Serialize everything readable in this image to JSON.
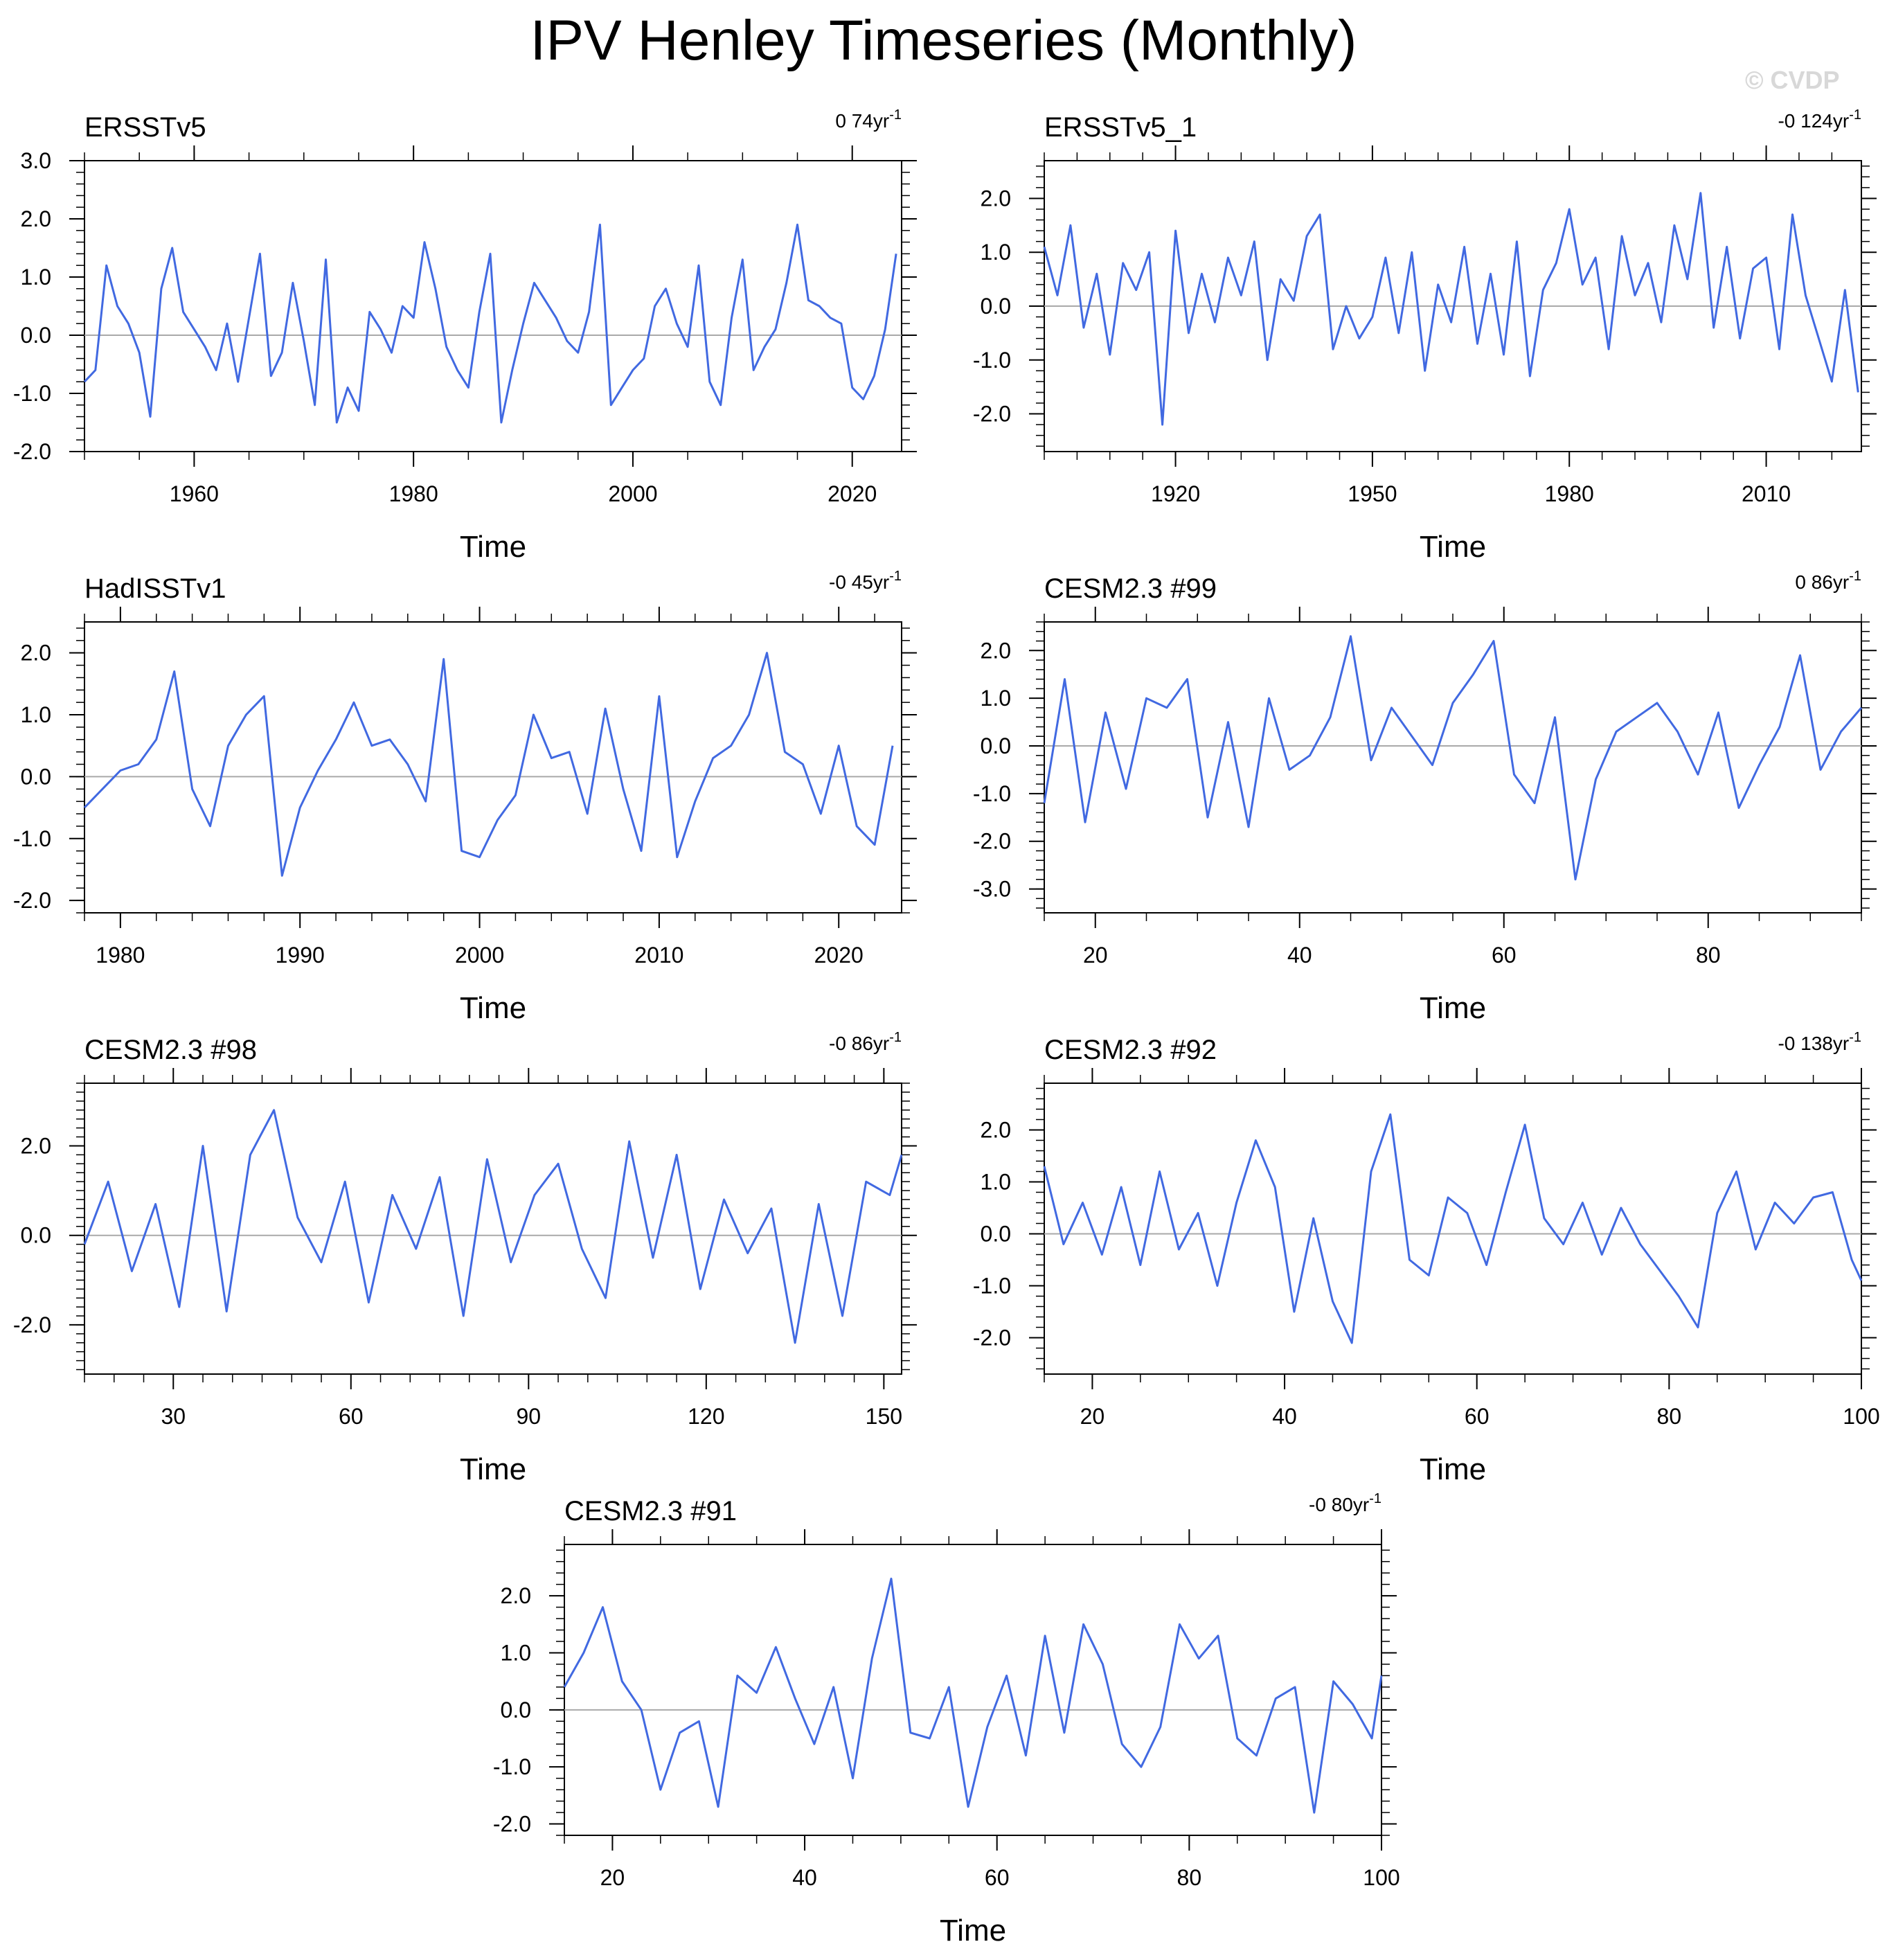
{
  "title": "IPV Henley Timeseries (Monthly)",
  "watermark": "© CVDP",
  "chart_data": [
    {
      "type": "line",
      "title": "ERSSTv5",
      "trend": "0 74yr",
      "trend_sup": "-1",
      "xlabel": "Time",
      "ylabel": "",
      "xlim": [
        1950,
        2024.5
      ],
      "ylim": [
        -2.0,
        3.0
      ],
      "yticks": [
        3.0,
        2.0,
        1.0,
        0.0,
        -1.0,
        -2.0
      ],
      "ytick_labels": [
        "3.0",
        "2.0",
        "1.0",
        "0.0",
        "-1.0",
        "-2.0"
      ],
      "xticks": [
        1960,
        1980,
        2000,
        2020
      ],
      "xtick_labels": [
        "1960",
        "1980",
        "2000",
        "2020"
      ],
      "series_color": "#4169e1",
      "series": [
        {
          "x": [
            1950,
            1951,
            1952,
            1953,
            1954,
            1955,
            1956,
            1957,
            1958,
            1959,
            1960,
            1961,
            1962,
            1963,
            1964,
            1965,
            1966,
            1967,
            1968,
            1969,
            1970,
            1971,
            1972,
            1973,
            1974,
            1975,
            1976,
            1977,
            1978,
            1979,
            1980,
            1981,
            1982,
            1983,
            1984,
            1985,
            1986,
            1987,
            1988,
            1989,
            1990,
            1991,
            1992,
            1993,
            1994,
            1995,
            1996,
            1997,
            1998,
            1999,
            2000,
            2001,
            2002,
            2003,
            2004,
            2005,
            2006,
            2007,
            2008,
            2009,
            2010,
            2011,
            2012,
            2013,
            2014,
            2015,
            2016,
            2017,
            2018,
            2019,
            2020,
            2021,
            2022,
            2023,
            2024
          ],
          "y": [
            -0.8,
            -0.6,
            1.2,
            0.5,
            0.2,
            -0.3,
            -1.4,
            0.8,
            1.5,
            0.4,
            0.1,
            -0.2,
            -0.6,
            0.2,
            -0.8,
            0.3,
            1.4,
            -0.7,
            -0.3,
            0.9,
            -0.1,
            -1.2,
            1.3,
            -1.5,
            -0.9,
            -1.3,
            0.4,
            0.1,
            -0.3,
            0.5,
            0.3,
            1.6,
            0.8,
            -0.2,
            -0.6,
            -0.9,
            0.4,
            1.4,
            -1.5,
            -0.6,
            0.2,
            0.9,
            0.6,
            0.3,
            -0.1,
            -0.3,
            0.4,
            1.9,
            -1.2,
            -0.9,
            -0.6,
            -0.4,
            0.5,
            0.8,
            0.2,
            -0.2,
            1.2,
            -0.8,
            -1.2,
            0.3,
            1.3,
            -0.6,
            -0.2,
            0.1,
            0.9,
            1.9,
            0.6,
            0.5,
            0.3,
            0.2,
            -0.9,
            -1.1,
            -0.7,
            0.1,
            1.4
          ]
        }
      ]
    },
    {
      "type": "line",
      "title": "ERSSTv5_1",
      "trend": "-0 124yr",
      "trend_sup": "-1",
      "xlabel": "Time",
      "ylabel": "",
      "xlim": [
        1900,
        2024.5
      ],
      "ylim": [
        -2.7,
        2.7
      ],
      "yticks": [
        2.0,
        1.0,
        0.0,
        -1.0,
        -2.0
      ],
      "ytick_labels": [
        "2.0",
        "1.0",
        "0.0",
        "-1.0",
        "-2.0"
      ],
      "xticks": [
        1920,
        1950,
        1980,
        2010
      ],
      "xtick_labels": [
        "1920",
        "1950",
        "1980",
        "2010"
      ],
      "series_color": "#4169e1",
      "series": [
        {
          "x": [
            1900,
            1902,
            1904,
            1906,
            1908,
            1910,
            1912,
            1914,
            1916,
            1918,
            1920,
            1922,
            1924,
            1926,
            1928,
            1930,
            1932,
            1934,
            1936,
            1938,
            1940,
            1942,
            1944,
            1946,
            1948,
            1950,
            1952,
            1954,
            1956,
            1958,
            1960,
            1962,
            1964,
            1966,
            1968,
            1970,
            1972,
            1974,
            1976,
            1978,
            1980,
            1982,
            1984,
            1986,
            1988,
            1990,
            1992,
            1994,
            1996,
            1998,
            2000,
            2002,
            2004,
            2006,
            2008,
            2010,
            2012,
            2014,
            2016,
            2018,
            2020,
            2022,
            2024
          ],
          "y": [
            1.1,
            0.2,
            1.5,
            -0.4,
            0.6,
            -0.9,
            0.8,
            0.3,
            1.0,
            -2.2,
            1.4,
            -0.5,
            0.6,
            -0.3,
            0.9,
            0.2,
            1.2,
            -1.0,
            0.5,
            0.1,
            1.3,
            1.7,
            -0.8,
            0.0,
            -0.6,
            -0.2,
            0.9,
            -0.5,
            1.0,
            -1.2,
            0.4,
            -0.3,
            1.1,
            -0.7,
            0.6,
            -0.9,
            1.2,
            -1.3,
            0.3,
            0.8,
            1.8,
            0.4,
            0.9,
            -0.8,
            1.3,
            0.2,
            0.8,
            -0.3,
            1.5,
            0.5,
            2.1,
            -0.4,
            1.1,
            -0.6,
            0.7,
            0.9,
            -0.8,
            1.7,
            0.2,
            -0.6,
            -1.4,
            0.3,
            -1.6
          ]
        }
      ]
    },
    {
      "type": "line",
      "title": "HadISSTv1",
      "trend": "-0 45yr",
      "trend_sup": "-1",
      "xlabel": "Time",
      "ylabel": "",
      "xlim": [
        1978,
        2023.5
      ],
      "ylim": [
        -2.2,
        2.5
      ],
      "yticks": [
        2.0,
        1.0,
        0.0,
        -1.0,
        -2.0
      ],
      "ytick_labels": [
        "2.0",
        "1.0",
        "0.0",
        "-1.0",
        "-2.0"
      ],
      "xticks": [
        1980,
        1990,
        2000,
        2010,
        2020
      ],
      "xtick_labels": [
        "1980",
        "1990",
        "2000",
        "2010",
        "2020"
      ],
      "series_color": "#4169e1",
      "series": [
        {
          "x": [
            1978,
            1979,
            1980,
            1981,
            1982,
            1983,
            1984,
            1985,
            1986,
            1987,
            1988,
            1989,
            1990,
            1991,
            1992,
            1993,
            1994,
            1995,
            1996,
            1997,
            1998,
            1999,
            2000,
            2001,
            2002,
            2003,
            2004,
            2005,
            2006,
            2007,
            2008,
            2009,
            2010,
            2011,
            2012,
            2013,
            2014,
            2015,
            2016,
            2017,
            2018,
            2019,
            2020,
            2021,
            2022,
            2023
          ],
          "y": [
            -0.5,
            -0.2,
            0.1,
            0.2,
            0.6,
            1.7,
            -0.2,
            -0.8,
            0.5,
            1.0,
            1.3,
            -1.6,
            -0.5,
            0.1,
            0.6,
            1.2,
            0.5,
            0.6,
            0.2,
            -0.4,
            1.9,
            -1.2,
            -1.3,
            -0.7,
            -0.3,
            1.0,
            0.3,
            0.4,
            -0.6,
            1.1,
            -0.2,
            -1.2,
            1.3,
            -1.3,
            -0.4,
            0.3,
            0.5,
            1.0,
            2.0,
            0.4,
            0.2,
            -0.6,
            0.5,
            -0.8,
            -1.1,
            0.5
          ]
        }
      ]
    },
    {
      "type": "line",
      "title": "CESM2.3 #99",
      "trend": "0 86yr",
      "trend_sup": "-1",
      "xlabel": "Time",
      "ylabel": "",
      "xlim": [
        15,
        95
      ],
      "ylim": [
        -3.5,
        2.6
      ],
      "yticks": [
        2.0,
        1.0,
        0.0,
        -1.0,
        -2.0,
        -3.0
      ],
      "ytick_labels": [
        "2.0",
        "1.0",
        "0.0",
        "-1.0",
        "-2.0",
        "-3.0"
      ],
      "xticks": [
        20,
        40,
        60,
        80
      ],
      "xtick_labels": [
        "20",
        "40",
        "60",
        "80"
      ],
      "series_color": "#4169e1",
      "series": [
        {
          "x": [
            15,
            17,
            19,
            21,
            23,
            25,
            27,
            29,
            31,
            33,
            35,
            37,
            39,
            41,
            43,
            45,
            47,
            49,
            51,
            53,
            55,
            57,
            59,
            61,
            63,
            65,
            67,
            69,
            71,
            73,
            75,
            77,
            79,
            81,
            83,
            85,
            87,
            89,
            91,
            93,
            95
          ],
          "y": [
            -1.2,
            1.4,
            -1.6,
            0.7,
            -0.9,
            1.0,
            0.8,
            1.4,
            -1.5,
            0.5,
            -1.7,
            1.0,
            -0.5,
            -0.2,
            0.6,
            2.3,
            -0.3,
            0.8,
            0.2,
            -0.4,
            0.9,
            1.5,
            2.2,
            -0.6,
            -1.2,
            0.6,
            -2.8,
            -0.7,
            0.3,
            0.6,
            0.9,
            0.3,
            -0.6,
            0.7,
            -1.3,
            -0.4,
            0.4,
            1.9,
            -0.5,
            0.3,
            0.8
          ]
        }
      ]
    },
    {
      "type": "line",
      "title": "CESM2.3 #98",
      "trend": "-0 86yr",
      "trend_sup": "-1",
      "xlabel": "Time",
      "ylabel": "",
      "xlim": [
        15,
        153
      ],
      "ylim": [
        -3.1,
        3.4
      ],
      "yticks": [
        2.0,
        0.0,
        -2.0
      ],
      "ytick_labels": [
        "2.0",
        "0.0",
        "-2.0"
      ],
      "xticks": [
        30,
        60,
        90,
        120,
        150
      ],
      "xtick_labels": [
        "30",
        "60",
        "90",
        "120",
        "150"
      ],
      "series_color": "#4169e1",
      "series": [
        {
          "x": [
            15,
            19,
            23,
            27,
            31,
            35,
            39,
            43,
            47,
            51,
            55,
            59,
            63,
            67,
            71,
            75,
            79,
            83,
            87,
            91,
            95,
            99,
            103,
            107,
            111,
            115,
            119,
            123,
            127,
            131,
            135,
            139,
            143,
            147,
            151,
            153
          ],
          "y": [
            -0.2,
            1.2,
            -0.8,
            0.7,
            -1.6,
            2.0,
            -1.7,
            1.8,
            2.8,
            0.4,
            -0.6,
            1.2,
            -1.5,
            0.9,
            -0.3,
            1.3,
            -1.8,
            1.7,
            -0.6,
            0.9,
            1.6,
            -0.3,
            -1.4,
            2.1,
            -0.5,
            1.8,
            -1.2,
            0.8,
            -0.4,
            0.6,
            -2.4,
            0.7,
            -1.8,
            1.2,
            0.9,
            1.8
          ]
        }
      ]
    },
    {
      "type": "line",
      "title": "CESM2.3 #92",
      "trend": "-0 138yr",
      "trend_sup": "-1",
      "xlabel": "Time",
      "ylabel": "",
      "xlim": [
        15,
        100
      ],
      "ylim": [
        -2.7,
        2.9
      ],
      "yticks": [
        2.0,
        1.0,
        0.0,
        -1.0,
        -2.0
      ],
      "ytick_labels": [
        "2.0",
        "1.0",
        "0.0",
        "-1.0",
        "-2.0"
      ],
      "xticks": [
        20,
        40,
        60,
        80,
        100
      ],
      "xtick_labels": [
        "20",
        "40",
        "60",
        "80",
        "100"
      ],
      "series_color": "#4169e1",
      "series": [
        {
          "x": [
            15,
            17,
            19,
            21,
            23,
            25,
            27,
            29,
            31,
            33,
            35,
            37,
            39,
            41,
            43,
            45,
            47,
            49,
            51,
            53,
            55,
            57,
            59,
            61,
            63,
            65,
            67,
            69,
            71,
            73,
            75,
            77,
            79,
            81,
            83,
            85,
            87,
            89,
            91,
            93,
            95,
            97,
            99,
            100
          ],
          "y": [
            1.3,
            -0.2,
            0.6,
            -0.4,
            0.9,
            -0.6,
            1.2,
            -0.3,
            0.4,
            -1.0,
            0.6,
            1.8,
            0.9,
            -1.5,
            0.3,
            -1.3,
            -2.1,
            1.2,
            2.3,
            -0.5,
            -0.8,
            0.7,
            0.4,
            -0.6,
            0.8,
            2.1,
            0.3,
            -0.2,
            0.6,
            -0.4,
            0.5,
            -0.2,
            -0.7,
            -1.2,
            -1.8,
            0.4,
            1.2,
            -0.3,
            0.6,
            0.2,
            0.7,
            0.8,
            -0.5,
            -0.9
          ]
        }
      ]
    },
    {
      "type": "line",
      "title": "CESM2.3 #91",
      "trend": "-0 80yr",
      "trend_sup": "-1",
      "xlabel": "Time",
      "ylabel": "",
      "xlim": [
        15,
        100
      ],
      "ylim": [
        -2.2,
        2.9
      ],
      "yticks": [
        2.0,
        1.0,
        0.0,
        -1.0,
        -2.0
      ],
      "ytick_labels": [
        "2.0",
        "1.0",
        "0.0",
        "-1.0",
        "-2.0"
      ],
      "xticks": [
        20,
        40,
        60,
        80,
        100
      ],
      "xtick_labels": [
        "20",
        "40",
        "60",
        "80",
        "100"
      ],
      "series_color": "#4169e1",
      "series": [
        {
          "x": [
            15,
            17,
            19,
            21,
            23,
            25,
            27,
            29,
            31,
            33,
            35,
            37,
            39,
            41,
            43,
            45,
            47,
            49,
            51,
            53,
            55,
            57,
            59,
            61,
            63,
            65,
            67,
            69,
            71,
            73,
            75,
            77,
            79,
            81,
            83,
            85,
            87,
            89,
            91,
            93,
            95,
            97,
            99,
            100
          ],
          "y": [
            0.4,
            1.0,
            1.8,
            0.5,
            0.0,
            -1.4,
            -0.4,
            -0.2,
            -1.7,
            0.6,
            0.3,
            1.1,
            0.2,
            -0.6,
            0.4,
            -1.2,
            0.9,
            2.3,
            -0.4,
            -0.5,
            0.4,
            -1.7,
            -0.3,
            0.6,
            -0.8,
            1.3,
            -0.4,
            1.5,
            0.8,
            -0.6,
            -1.0,
            -0.3,
            1.5,
            0.9,
            1.3,
            -0.5,
            -0.8,
            0.2,
            0.4,
            -1.8,
            0.5,
            0.1,
            -0.5,
            0.6
          ]
        }
      ]
    }
  ]
}
